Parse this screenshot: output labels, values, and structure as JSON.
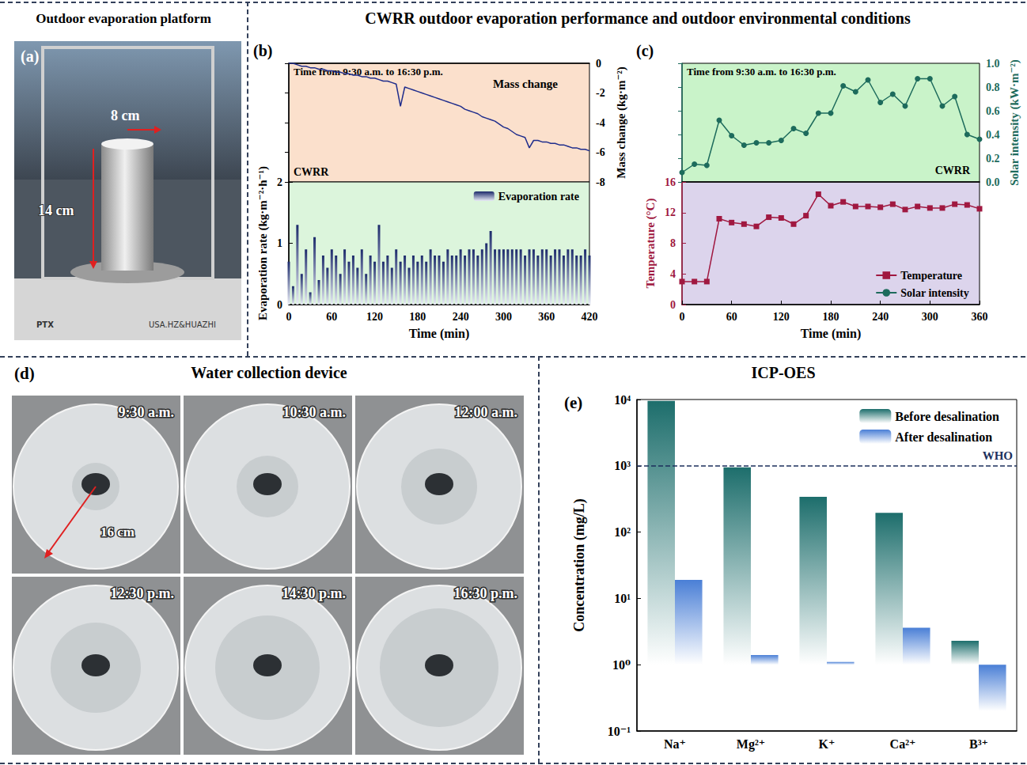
{
  "sections": {
    "a": {
      "title": "Outdoor evaporation platform",
      "letter": "(a)",
      "labels": [
        "8 cm",
        "14 cm"
      ],
      "balance_text": [
        "PTX",
        "USA.HZ&HUAZHI"
      ]
    },
    "bc_title": "CWRR outdoor evaporation performance and outdoor environmental conditions",
    "d": {
      "title": "Water collection device",
      "letter": "(d)",
      "times": [
        "9:30 a.m.",
        "10:30 a.m.",
        "12:00 a.m.",
        "12:30 p.m.",
        "14:30 p.m.",
        "16:30 p.m."
      ],
      "label": "16 cm"
    },
    "e_title": "ICP-OES"
  },
  "chart_data": [
    {
      "panel": "(b)",
      "type": "line",
      "x": [
        0,
        6,
        12,
        18,
        24,
        30,
        36,
        42,
        48,
        54,
        60,
        66,
        72,
        78,
        84,
        90,
        96,
        102,
        108,
        114,
        120,
        126,
        132,
        138,
        144,
        150,
        156,
        162,
        168,
        174,
        180,
        186,
        192,
        198,
        204,
        210,
        216,
        222,
        228,
        234,
        240,
        246,
        252,
        258,
        264,
        270,
        276,
        282,
        288,
        294,
        300,
        306,
        312,
        318,
        324,
        330,
        336,
        342,
        348,
        354,
        360,
        366,
        372,
        378,
        384,
        390,
        396,
        402,
        408,
        414,
        420
      ],
      "xlim": [
        0,
        420
      ],
      "xticks": [
        0,
        60,
        120,
        180,
        240,
        300,
        360,
        420
      ],
      "xlabel": "Time (min)",
      "ylim": [
        0,
        2
      ],
      "yticks": [
        0,
        1,
        2
      ],
      "ylabel": "Evaporation rate (kg·m⁻²·h⁻¹)",
      "y2lim": [
        -8,
        0
      ],
      "y2ticks": [
        -8,
        -6,
        -4,
        -2,
        0
      ],
      "y2label": "Mass change (kg·m⁻²)",
      "annotations": [
        "Time from 9:30 a.m. to 16:30 p.m.",
        "CWRR"
      ],
      "legend": "upper right",
      "series": [
        {
          "name": "Mass change",
          "type": "line",
          "axis": "y2",
          "color": "#1f2d8c",
          "values": [
            0,
            0,
            -0.1,
            -0.2,
            -0.2,
            -0.3,
            -0.3,
            -0.4,
            -0.4,
            -0.5,
            -0.5,
            -0.6,
            -0.6,
            -0.7,
            -0.7,
            -0.8,
            -0.8,
            -0.9,
            -0.9,
            -1.0,
            -1.0,
            -1.1,
            -1.2,
            -1.2,
            -1.3,
            -1.4,
            -2.9,
            -1.6,
            -1.7,
            -1.8,
            -1.9,
            -2.0,
            -2.1,
            -2.2,
            -2.3,
            -2.4,
            -2.5,
            -2.6,
            -2.7,
            -2.8,
            -2.9,
            -3.1,
            -3.2,
            -3.3,
            -3.4,
            -3.6,
            -3.7,
            -3.8,
            -3.9,
            -4.1,
            -4.3,
            -4.4,
            -4.6,
            -4.8,
            -4.9,
            -5.0,
            -5.7,
            -5.2,
            -5.2,
            -5.3,
            -5.3,
            -5.4,
            -5.4,
            -5.5,
            -5.5,
            -5.6,
            -5.7,
            -5.7,
            -5.8,
            -5.8,
            -5.9
          ]
        },
        {
          "name": "Evaporation rate",
          "type": "bar",
          "color": "#1c2a6b",
          "values": [
            0.7,
            0.3,
            1.3,
            0.5,
            0.9,
            0.2,
            1.1,
            0.4,
            0.8,
            0.6,
            0.9,
            0.8,
            0.5,
            0.9,
            0.7,
            0.8,
            0.6,
            0.9,
            0.5,
            0.8,
            0.7,
            1.3,
            0.7,
            0.8,
            0.6,
            0.9,
            0.7,
            0.8,
            0.6,
            0.8,
            0.7,
            0.8,
            0.7,
            0.9,
            0.8,
            0.8,
            0.7,
            0.9,
            0.8,
            0.8,
            0.9,
            0.8,
            0.9,
            0.9,
            0.8,
            0.9,
            1.0,
            1.2,
            0.9,
            0.9,
            0.9,
            0.9,
            0.9,
            0.9,
            0.9,
            0.8,
            0.9,
            0.9,
            0.8,
            0.9,
            0.9,
            0.8,
            0.9,
            0.9,
            0.8,
            0.9,
            0.9,
            0.8,
            0.8,
            0.9,
            0.8
          ]
        }
      ]
    },
    {
      "panel": "(c)",
      "type": "line",
      "x": [
        0,
        15,
        30,
        45,
        60,
        75,
        90,
        105,
        120,
        135,
        150,
        165,
        180,
        195,
        210,
        225,
        240,
        255,
        270,
        285,
        300,
        315,
        330,
        345,
        360
      ],
      "xlim": [
        0,
        360
      ],
      "xticks": [
        0,
        60,
        120,
        180,
        240,
        300,
        360
      ],
      "xlabel": "Time (min)",
      "ylim": [
        0,
        16
      ],
      "yticks": [
        0,
        4,
        8,
        12,
        16
      ],
      "ylabel": "Temperature (°C)",
      "y2lim": [
        0,
        1
      ],
      "y2ticks": [
        {
          "value": 0,
          "label": "0.0"
        },
        0.2,
        0.4,
        0.6,
        0.8,
        {
          "value": 1,
          "label": "1.0"
        }
      ],
      "y2label": "Solar intensity (kW·m⁻²)",
      "annotations": [
        "Time from 9:30 a.m. to 16:30 p.m.",
        "CWRR"
      ],
      "legend": "lower right",
      "series": [
        {
          "name": "Temperature",
          "color": "#a01840",
          "marker": "square",
          "values": [
            3,
            3,
            3,
            11.2,
            10.7,
            10.5,
            10.2,
            11.4,
            11.3,
            10.5,
            11.6,
            14.4,
            12.9,
            13.4,
            12.8,
            12.8,
            12.7,
            13.1,
            12.4,
            12.8,
            12.6,
            12.6,
            13.1,
            13.0,
            12.5
          ]
        },
        {
          "name": "Solar intensity",
          "axis": "y2",
          "color": "#1d6b5c",
          "marker": "circle",
          "values": [
            0.08,
            0.15,
            0.14,
            0.52,
            0.39,
            0.31,
            0.33,
            0.33,
            0.35,
            0.45,
            0.41,
            0.58,
            0.58,
            0.81,
            0.76,
            0.86,
            0.67,
            0.74,
            0.64,
            0.87,
            0.87,
            0.64,
            0.72,
            0.4,
            0.36
          ]
        }
      ]
    },
    {
      "panel": "(e)",
      "type": "bar",
      "log": "y",
      "categories": [
        "Na⁺",
        "Mg²⁺",
        "K⁺",
        "Ca²⁺",
        "B³⁺"
      ],
      "ylim": [
        0.1,
        10000
      ],
      "yticks": [
        {
          "value": 0.1,
          "label": "10⁻¹"
        },
        {
          "value": 1,
          "label": "10⁰"
        },
        {
          "value": 10,
          "label": "10¹"
        },
        {
          "value": 100,
          "label": "10²"
        },
        {
          "value": 1000,
          "label": "10³"
        },
        {
          "value": 10000,
          "label": "10⁴"
        }
      ],
      "ylabel": "Concentration (mg/L)",
      "legend": "upper right",
      "reference_line": {
        "value": 1000,
        "label": "WHO"
      },
      "series": [
        {
          "name": "Before desalination",
          "color": "#1d6e6c",
          "values": [
            9500,
            950,
            340,
            195,
            2.3
          ]
        },
        {
          "name": "After desalination",
          "color": "#4a7fd6",
          "values": [
            19,
            1.4,
            1.1,
            3.6,
            0.2
          ]
        }
      ]
    }
  ]
}
